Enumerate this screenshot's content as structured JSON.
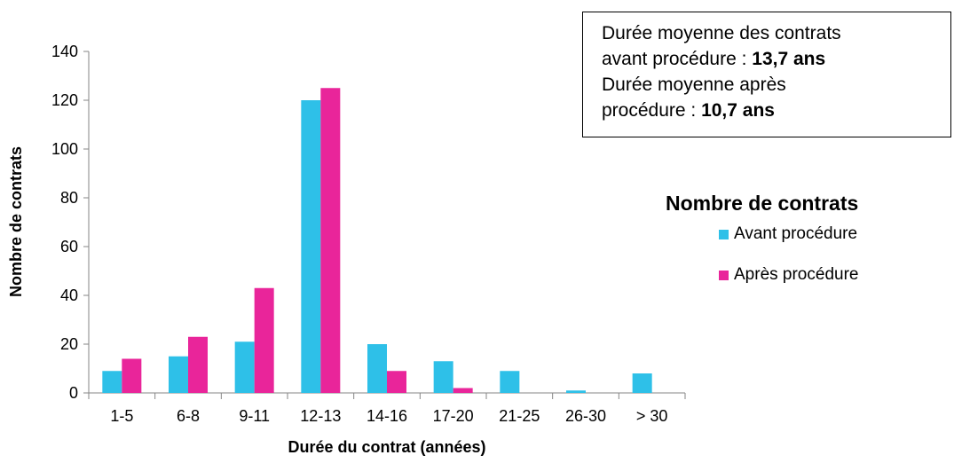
{
  "chart_data": {
    "type": "bar",
    "categories": [
      "1-5",
      "6-8",
      "9-11",
      "12-13",
      "14-16",
      "17-20",
      "21-25",
      "26-30",
      "> 30"
    ],
    "series": [
      {
        "name": "Avant procédure",
        "values": [
          9,
          15,
          21,
          120,
          20,
          13,
          9,
          1,
          8
        ],
        "color": "#2EC0E8"
      },
      {
        "name": "Après procédure",
        "values": [
          14,
          23,
          43,
          125,
          9,
          2,
          0,
          0,
          0
        ],
        "color": "#E9259A"
      }
    ],
    "xlabel": "Durée du contrat (années)",
    "ylabel": "Nombre de contrats",
    "ylim": [
      0,
      140
    ],
    "yticks": [
      0,
      20,
      40,
      60,
      80,
      100,
      120,
      140
    ],
    "grid": false,
    "legend": {
      "title": "Nombre de contrats",
      "position": "right"
    },
    "annotation": {
      "line1": "Durée moyenne des contrats",
      "line2_text": "avant procédure : ",
      "line2_value": "13,7 ans",
      "line3": "Durée moyenne après",
      "line4_text": "procédure : ",
      "line4_value": "10,7 ans"
    }
  }
}
